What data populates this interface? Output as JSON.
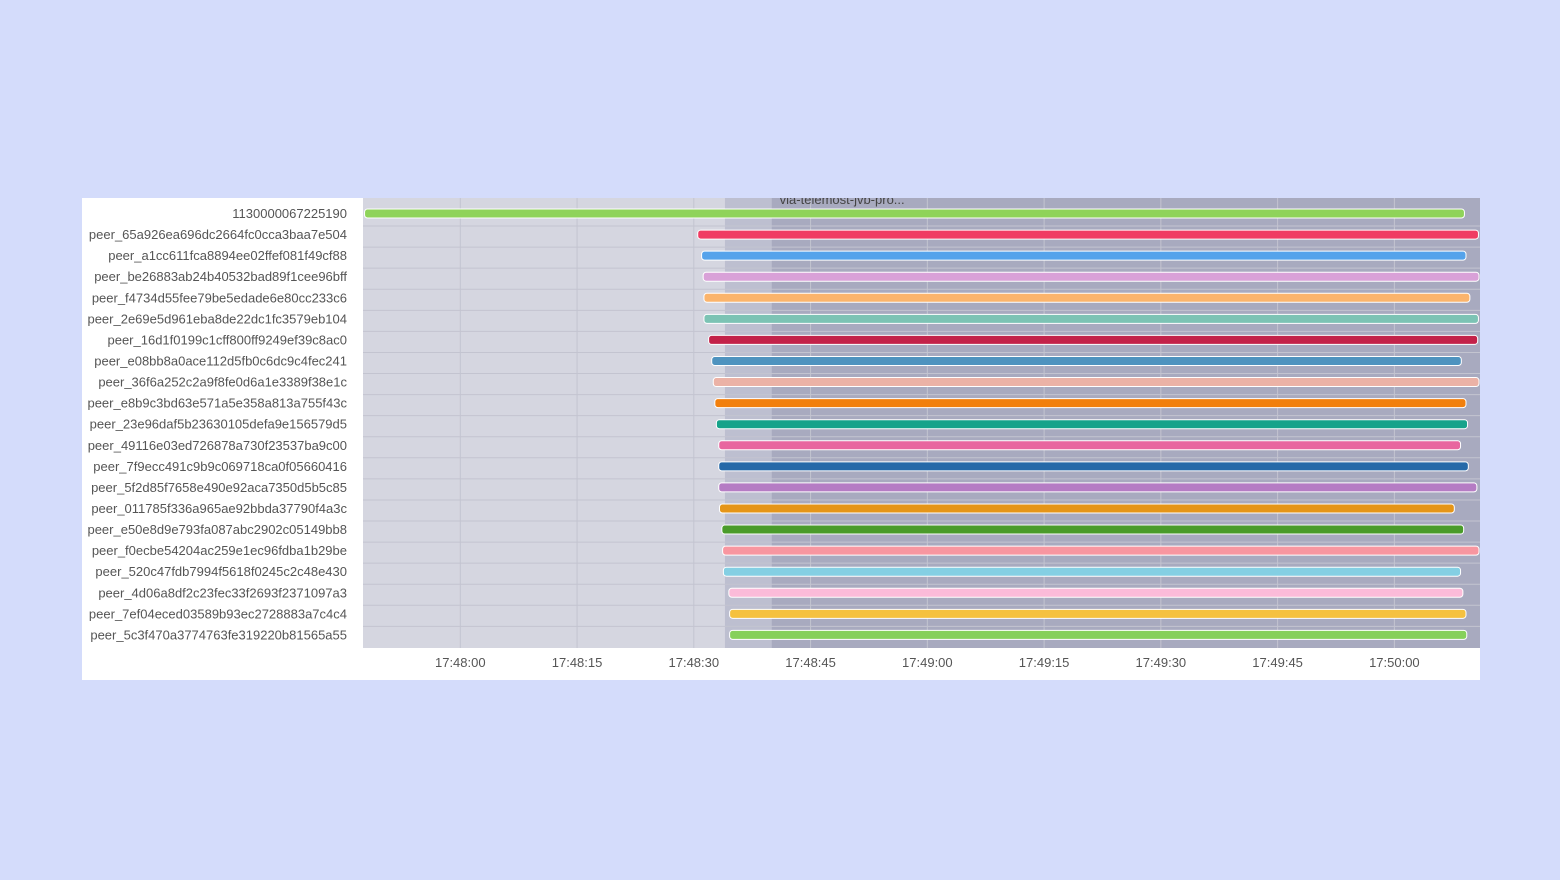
{
  "colors": {
    "page_background": "#d4dcfb",
    "panel_background": "#ffffff",
    "plot_background": "#d5d6e0",
    "band_light": "#bdbfd0",
    "band_dark": "#a8aabf",
    "grid": "#c3c4d0",
    "label_text": "#555555"
  },
  "chart_data": {
    "type": "timeline",
    "title": "",
    "xlabel": "",
    "ylabel": "",
    "x_domain": [
      "17:47:47.5",
      "17:50:11"
    ],
    "x_ticks": [
      "17:48:00",
      "17:48:15",
      "17:48:30",
      "17:48:45",
      "17:49:00",
      "17:49:15",
      "17:49:30",
      "17:49:45",
      "17:50:00"
    ],
    "regions": [
      {
        "start": "17:48:34",
        "end": "17:48:40",
        "shade": "light",
        "label": ""
      },
      {
        "start": "17:48:40",
        "end": "17:50:11",
        "shade": "dark",
        "label": "via-telemost-jvb-pro..."
      }
    ],
    "rows": [
      {
        "name": "1130000067225190",
        "start": "17:47:47.7",
        "end": "17:50:09.0",
        "color": "#8fd35a"
      },
      {
        "name": "peer_65a926ea696dc2664fc0cca3baa7e504",
        "start": "17:48:30.5",
        "end": "17:50:10.8",
        "color": "#f03c63"
      },
      {
        "name": "peer_a1cc611fca8894ee02ffef081f49cf88",
        "start": "17:48:31.0",
        "end": "17:50:09.2",
        "color": "#55a3eb"
      },
      {
        "name": "peer_be26883ab24b40532bad89f1cee96bff",
        "start": "17:48:31.2",
        "end": "17:50:10.9",
        "color": "#d9a1d8"
      },
      {
        "name": "peer_f4734d55fee79be5edade6e80cc233c6",
        "start": "17:48:31.3",
        "end": "17:50:09.7",
        "color": "#fbb46c"
      },
      {
        "name": "peer_2e69e5d961eba8de22dc1fc3579eb104",
        "start": "17:48:31.3",
        "end": "17:50:10.8",
        "color": "#7cc3b4"
      },
      {
        "name": "peer_16d1f0199c1cff800ff9249ef39c8ac0",
        "start": "17:48:31.9",
        "end": "17:50:10.7",
        "color": "#c32249"
      },
      {
        "name": "peer_e08bb8a0ace112d5fb0c6dc9c4fec241",
        "start": "17:48:32.3",
        "end": "17:50:08.6",
        "color": "#4e93bf"
      },
      {
        "name": "peer_36f6a252c2a9f8fe0d6a1e3389f38e1c",
        "start": "17:48:32.5",
        "end": "17:50:10.9",
        "color": "#ebb2a6"
      },
      {
        "name": "peer_e8b9c3bd63e571a5e358a813a755f43c",
        "start": "17:48:32.7",
        "end": "17:50:09.2",
        "color": "#f27f0c"
      },
      {
        "name": "peer_23e96daf5b23630105defa9e156579d5",
        "start": "17:48:32.9",
        "end": "17:50:09.4",
        "color": "#16a38a"
      },
      {
        "name": "peer_49116e03ed726878a730f23537ba9c00",
        "start": "17:48:33.2",
        "end": "17:50:08.5",
        "color": "#e8669f"
      },
      {
        "name": "peer_7f9ecc491c9b9c069718ca0f05660416",
        "start": "17:48:33.2",
        "end": "17:50:09.5",
        "color": "#2669a8"
      },
      {
        "name": "peer_5f2d85f7658e490e92aca7350d5b5c85",
        "start": "17:48:33.2",
        "end": "17:50:10.6",
        "color": "#b57cc4"
      },
      {
        "name": "peer_011785f336a965ae92bbda37790f4a3c",
        "start": "17:48:33.3",
        "end": "17:50:07.7",
        "color": "#e59518"
      },
      {
        "name": "peer_e50e8d9e793fa087abc2902c05149bb8",
        "start": "17:48:33.6",
        "end": "17:50:08.9",
        "color": "#4a9b2a"
      },
      {
        "name": "peer_f0ecbe54204ac259e1ec96fdba1b29be",
        "start": "17:48:33.7",
        "end": "17:50:10.9",
        "color": "#f896a0"
      },
      {
        "name": "peer_520c47fdb7994f5618f0245c2c48e430",
        "start": "17:48:33.8",
        "end": "17:50:08.5",
        "color": "#84cfe3"
      },
      {
        "name": "peer_4d06a8df2c23fec33f2693f2371097a3",
        "start": "17:48:34.5",
        "end": "17:50:08.8",
        "color": "#fbbbd9"
      },
      {
        "name": "peer_7ef04eced03589b93ec2728883a7c4c4",
        "start": "17:48:34.6",
        "end": "17:50:09.2",
        "color": "#f5c13f"
      },
      {
        "name": "peer_5c3f470a3774763fe319220b81565a55",
        "start": "17:48:34.6",
        "end": "17:50:09.3",
        "color": "#86d05a"
      }
    ]
  }
}
